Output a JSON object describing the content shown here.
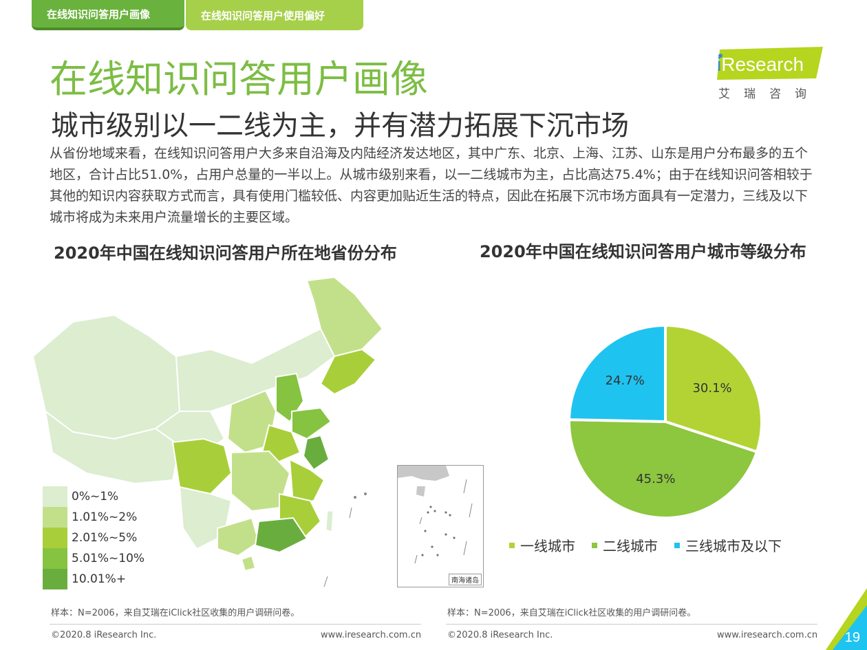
{
  "tabs": [
    {
      "label": "在线知识问答用户画像"
    },
    {
      "label": "在线知识问答用户使用偏好"
    }
  ],
  "header": {
    "title": "在线知识问答用户画像",
    "subtitle": "城市级别以一二线为主，并有潜力拓展下沉市场",
    "paragraph": "从省份地域来看，在线知识问答用户大多来自沿海及内陆经济发达地区，其中广东、北京、上海、江苏、山东是用户分布最多的五个地区，合计占比51.0%，占用户总量的一半以上。从城市级别来看，以一二线城市为主，占比高达75.4%；由于在线知识问答相较于其他的知识内容获取方式而言，具有使用门槛较低、内容更加贴近生活的特点，因此在拓展下沉市场方面具有一定潜力，三线及以下城市将成为未来用户流量增长的主要区域。"
  },
  "logo": {
    "brand_i": "i",
    "brand_rest": "Research",
    "cn": "艾瑞咨询",
    "color": "#b5d51e"
  },
  "map_section": {
    "title": "2020年中国在线知识问答用户所在地省份分布",
    "inset_label": "南海诸岛",
    "legend": [
      {
        "label": "0%~1%",
        "color": "#dcedd0"
      },
      {
        "label": "1.01%~2%",
        "color": "#c2e08a"
      },
      {
        "label": "2.01%~5%",
        "color": "#a8cf3a"
      },
      {
        "label": "5.01%~10%",
        "color": "#86c340"
      },
      {
        "label": "10.01%+",
        "color": "#6aad3f"
      }
    ]
  },
  "chart_data": {
    "type": "pie",
    "title": "2020年中国在线知识问答用户城市等级分布",
    "slices": [
      {
        "label": "一线城市",
        "value": 30.1,
        "display": "30.1%",
        "color": "#b3d335"
      },
      {
        "label": "二线城市",
        "value": 45.3,
        "display": "45.3%",
        "color": "#8dc63f"
      },
      {
        "label": "三线城市及以下",
        "value": 24.7,
        "display": "24.7%",
        "color": "#1fc3f0"
      }
    ],
    "legend_position": "bottom"
  },
  "footer": {
    "note_left": "样本：N=2006，来自艾瑞在iClick社区收集的用户调研问卷。",
    "note_right": "样本：N=2006，来自艾瑞在iClick社区收集的用户调研问卷。",
    "copyright_left": "©2020.8 iResearch Inc.",
    "url_left": "www.iresearch.com.cn",
    "copyright_right": "©2020.8 iResearch Inc.",
    "url_right": "www.iresearch.com.cn",
    "page_number": "19"
  }
}
